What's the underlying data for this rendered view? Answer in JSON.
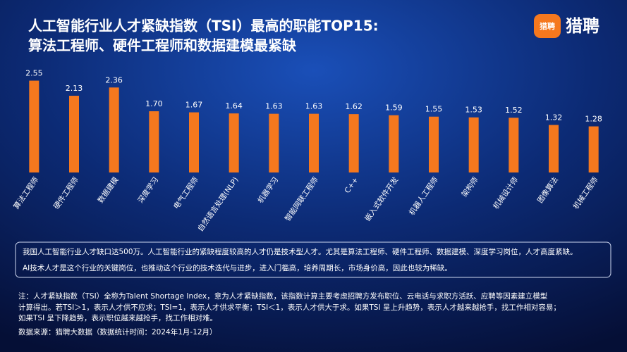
{
  "chart_data": {
    "type": "bar",
    "title": [
      "人工智能行业人才紧缺指数（TSI）最高的职能TOP15:",
      "算法工程师、硬件工程师和数据建模最紧缺"
    ],
    "categories": [
      "算法工程师",
      "硬件工程师",
      "数据建模",
      "深度学习",
      "电气工程师",
      "自然语言处理(NLP)",
      "机器学习",
      "智能网联工程师",
      "C++",
      "嵌入式软件开发",
      "机器人工程师",
      "架构师",
      "机械设计师",
      "图像算法",
      "机械工程师"
    ],
    "values": [
      2.55,
      2.13,
      2.36,
      1.7,
      1.67,
      1.64,
      1.63,
      1.63,
      1.62,
      1.59,
      1.55,
      1.53,
      1.52,
      1.32,
      1.28
    ],
    "value_labels": [
      "2.55",
      "2.13",
      "2.36",
      "1.70",
      "1.67",
      "1.64",
      "1.63",
      "1.63",
      "1.62",
      "1.59",
      "1.55",
      "1.53",
      "1.52",
      "1.32",
      "1.28"
    ],
    "color": "#f5781e",
    "ylim": [
      0,
      2.6
    ]
  },
  "logo": {
    "badge": "猎聘",
    "name": "猎聘"
  },
  "summary": [
    "我国人工智能行业人才缺口达500万。人工智能行业的紧缺程度较高的人才仍是技术型人才。尤其是算法工程师、硬件工程师、数据建模、深度学习岗位，人才高度紧缺。",
    "AI技术人才是这个行业的关键岗位，也推动这个行业的技术迭代与进步，进入门槛高，培养周期长，市场身价高，因此也较为稀缺。"
  ],
  "notes": [
    "注：人才紧缺指数（TSI）全称为Talent Shortage Index，意为人才紧缺指数，该指数计算主要考虑招聘方发布职位、云电话与求职方活跃、应聘等因素建立模型",
    "计算得出。若TSI＞1，表示人才供不应求；TSI=1，表示人才供求平衡；TSI＜1，表示人才供大于求。如果TSI 呈上升趋势，表示人才越来越抢手，找工作相对容易；",
    "如果TSI 呈下降趋势，表示职位越来越抢手，找工作相对难。"
  ],
  "source": "数据来源：猎聘大数据（数据统计时间：2024年1月-12月）"
}
